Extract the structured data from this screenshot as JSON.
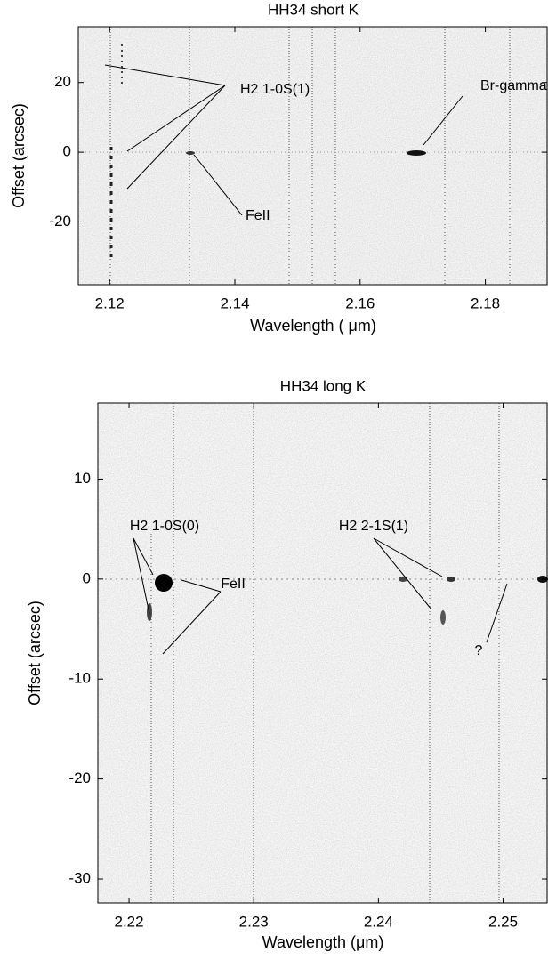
{
  "chart_data": [
    {
      "type": "spectrum-image",
      "title": "HH34 short K",
      "x_label": "Wavelength ( μm)",
      "y_label": "Offset (arcsec)",
      "xlim": [
        2.115,
        2.19
      ],
      "ylim": [
        -38,
        36
      ],
      "xticks": [
        2.12,
        2.14,
        2.16,
        2.18
      ],
      "yticks": [
        20,
        0,
        -20
      ],
      "annotations": [
        "H2 1-0S(1)",
        "Br-gamma",
        "FeII"
      ]
    },
    {
      "type": "spectrum-image",
      "title": "HH34 long K",
      "x_label": "Wavelength (μm)",
      "y_label": "Offset (arcsec)",
      "xlim": [
        2.2175,
        2.2536
      ],
      "ylim": [
        -32.4,
        17.6
      ],
      "xticks": [
        2.22,
        2.23,
        2.24,
        2.25
      ],
      "yticks": [
        10,
        0,
        -10,
        -20,
        -30
      ],
      "annotations": [
        "H2 1-0S(0)",
        "FeII",
        "H2 2-1S(1)",
        "?"
      ]
    }
  ]
}
